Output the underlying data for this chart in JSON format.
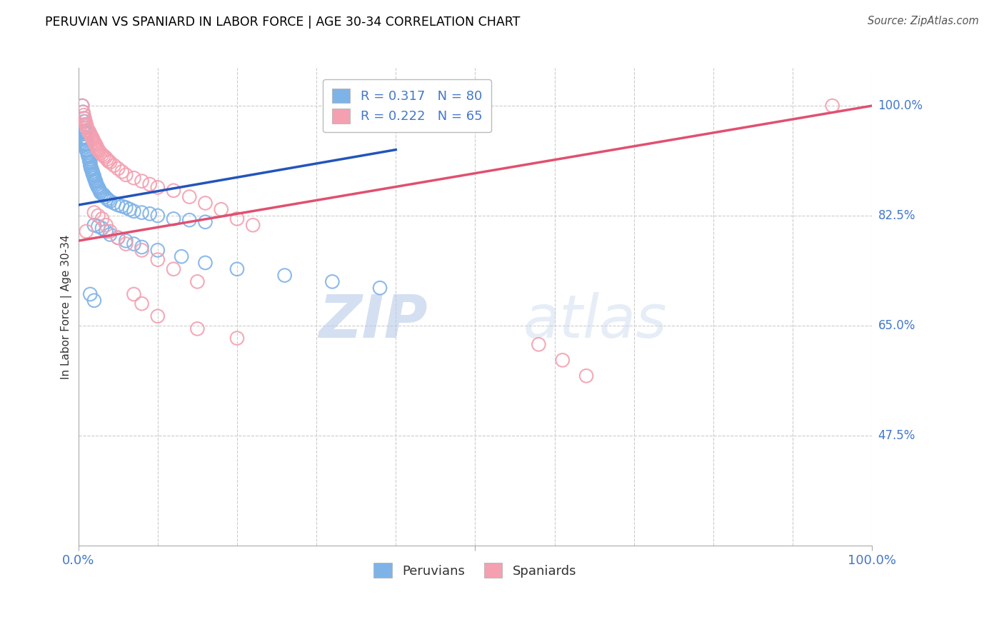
{
  "title": "PERUVIAN VS SPANIARD IN LABOR FORCE | AGE 30-34 CORRELATION CHART",
  "source": "Source: ZipAtlas.com",
  "ylabel": "In Labor Force | Age 30-34",
  "xlim": [
    0.0,
    1.0
  ],
  "ylim": [
    0.3,
    1.06
  ],
  "ytick_labels": [
    "47.5%",
    "65.0%",
    "82.5%",
    "100.0%"
  ],
  "ytick_values": [
    0.475,
    0.65,
    0.825,
    1.0
  ],
  "blue_R": 0.317,
  "blue_N": 80,
  "pink_R": 0.222,
  "pink_N": 65,
  "blue_color": "#7eb3e8",
  "pink_color": "#f4a0b0",
  "blue_line_color": "#2255bb",
  "pink_line_color": "#e05070",
  "legend_label_blue": "Peruvians",
  "legend_label_pink": "Spaniards",
  "blue_points_x": [
    0.005,
    0.006,
    0.007,
    0.007,
    0.008,
    0.008,
    0.009,
    0.009,
    0.009,
    0.009,
    0.01,
    0.01,
    0.01,
    0.01,
    0.01,
    0.01,
    0.011,
    0.011,
    0.012,
    0.012,
    0.013,
    0.013,
    0.014,
    0.014,
    0.015,
    0.015,
    0.015,
    0.016,
    0.016,
    0.017,
    0.018,
    0.018,
    0.019,
    0.02,
    0.02,
    0.021,
    0.022,
    0.022,
    0.023,
    0.024,
    0.025,
    0.026,
    0.027,
    0.028,
    0.03,
    0.032,
    0.034,
    0.036,
    0.038,
    0.04,
    0.045,
    0.05,
    0.055,
    0.06,
    0.065,
    0.07,
    0.08,
    0.09,
    0.1,
    0.12,
    0.14,
    0.16,
    0.02,
    0.025,
    0.03,
    0.035,
    0.04,
    0.05,
    0.06,
    0.07,
    0.08,
    0.1,
    0.13,
    0.16,
    0.2,
    0.26,
    0.32,
    0.38,
    0.015,
    0.02
  ],
  "blue_points_y": [
    1.0,
    0.99,
    0.98,
    0.975,
    0.97,
    0.965,
    0.96,
    0.958,
    0.955,
    0.95,
    0.948,
    0.945,
    0.94,
    0.938,
    0.935,
    0.93,
    0.93,
    0.928,
    0.925,
    0.922,
    0.92,
    0.918,
    0.915,
    0.912,
    0.91,
    0.908,
    0.905,
    0.902,
    0.9,
    0.898,
    0.895,
    0.892,
    0.89,
    0.888,
    0.885,
    0.882,
    0.88,
    0.878,
    0.875,
    0.872,
    0.87,
    0.868,
    0.865,
    0.862,
    0.86,
    0.858,
    0.855,
    0.852,
    0.85,
    0.848,
    0.845,
    0.842,
    0.84,
    0.838,
    0.835,
    0.832,
    0.83,
    0.828,
    0.825,
    0.82,
    0.818,
    0.815,
    0.81,
    0.808,
    0.805,
    0.8,
    0.795,
    0.79,
    0.785,
    0.78,
    0.775,
    0.77,
    0.76,
    0.75,
    0.74,
    0.73,
    0.72,
    0.71,
    0.7,
    0.69
  ],
  "pink_points_x": [
    0.005,
    0.006,
    0.007,
    0.008,
    0.009,
    0.01,
    0.01,
    0.011,
    0.012,
    0.013,
    0.014,
    0.015,
    0.016,
    0.017,
    0.018,
    0.019,
    0.02,
    0.021,
    0.022,
    0.023,
    0.024,
    0.025,
    0.026,
    0.028,
    0.03,
    0.032,
    0.034,
    0.036,
    0.038,
    0.04,
    0.045,
    0.05,
    0.055,
    0.06,
    0.07,
    0.08,
    0.09,
    0.1,
    0.12,
    0.14,
    0.16,
    0.18,
    0.2,
    0.22,
    0.02,
    0.025,
    0.03,
    0.035,
    0.04,
    0.05,
    0.06,
    0.08,
    0.1,
    0.12,
    0.15,
    0.07,
    0.08,
    0.1,
    0.15,
    0.2,
    0.58,
    0.61,
    0.64,
    0.01,
    0.95
  ],
  "pink_points_y": [
    1.0,
    0.99,
    0.985,
    0.98,
    0.975,
    0.97,
    0.968,
    0.965,
    0.962,
    0.96,
    0.958,
    0.955,
    0.952,
    0.95,
    0.948,
    0.945,
    0.942,
    0.94,
    0.938,
    0.935,
    0.932,
    0.93,
    0.928,
    0.925,
    0.922,
    0.92,
    0.918,
    0.915,
    0.912,
    0.91,
    0.905,
    0.9,
    0.895,
    0.89,
    0.885,
    0.88,
    0.875,
    0.87,
    0.865,
    0.855,
    0.845,
    0.835,
    0.82,
    0.81,
    0.83,
    0.825,
    0.82,
    0.81,
    0.8,
    0.79,
    0.78,
    0.77,
    0.755,
    0.74,
    0.72,
    0.7,
    0.685,
    0.665,
    0.645,
    0.63,
    0.62,
    0.595,
    0.57,
    0.8,
    1.0
  ],
  "blue_line": {
    "x0": 0.0,
    "x1": 0.4,
    "y0": 0.842,
    "y1": 0.93
  },
  "pink_line": {
    "x0": 0.0,
    "x1": 1.0,
    "y0": 0.785,
    "y1": 1.0
  },
  "watermark_zip": "ZIP",
  "watermark_atlas": "atlas",
  "background_color": "#ffffff",
  "grid_color": "#cccccc",
  "title_color": "#000000",
  "axis_label_color": "#333333",
  "annotation_color": "#4477cc"
}
